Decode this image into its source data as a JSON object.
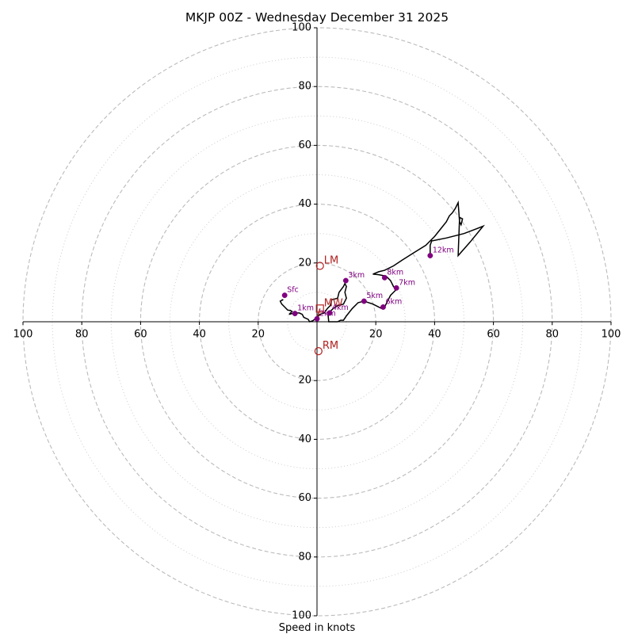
{
  "colors": {
    "trace": "#000000",
    "height_marker": "#800080",
    "storm_motion": "#b22222",
    "ring_major": "#bbbbbb",
    "ring_minor": "#cccccc",
    "axis": "#000000"
  },
  "chart_data": {
    "type": "hodograph",
    "title": "MKJP 00Z - Wednesday December 31 2025",
    "xlabel": "Speed in knots",
    "units": "kt",
    "range": 100,
    "major_rings": [
      20,
      40,
      60,
      80,
      100
    ],
    "minor_rings": [
      10,
      30,
      50,
      70,
      90
    ],
    "tick_labels": {
      "x_left": [
        "100",
        "80",
        "60",
        "40",
        "20"
      ],
      "x_right": [
        "20",
        "40",
        "60",
        "80",
        "100"
      ],
      "y_up": [
        "20",
        "40",
        "60",
        "80",
        "100"
      ],
      "y_down": [
        "20",
        "40",
        "60",
        "80",
        "100"
      ]
    },
    "tick_values": [
      20,
      40,
      60,
      80,
      100
    ],
    "trace_uv": [
      [
        -12,
        7.5
      ],
      [
        -11.5,
        7.5
      ],
      [
        -12.5,
        7
      ],
      [
        -12,
        6
      ],
      [
        -11,
        5
      ],
      [
        -10,
        4
      ],
      [
        -9,
        3.8
      ],
      [
        -8.5,
        3.5
      ],
      [
        -9,
        3
      ],
      [
        -9.5,
        2.5
      ],
      [
        -8.5,
        2.8
      ],
      [
        -7.5,
        3
      ],
      [
        -6,
        3
      ],
      [
        -5,
        2.5
      ],
      [
        -4.5,
        1.5
      ],
      [
        -3,
        0.8
      ],
      [
        -2.5,
        0
      ],
      [
        -1.5,
        0.3
      ],
      [
        0,
        1.4
      ],
      [
        1,
        2.5
      ],
      [
        2.5,
        3
      ],
      [
        3.5,
        4.5
      ],
      [
        4.5,
        5.5
      ],
      [
        5,
        7.5
      ],
      [
        7,
        8
      ],
      [
        7.5,
        10
      ],
      [
        9,
        12
      ],
      [
        9.5,
        13
      ],
      [
        10,
        12
      ],
      [
        9.5,
        10
      ],
      [
        10,
        8
      ],
      [
        9,
        6
      ],
      [
        7,
        5.5
      ],
      [
        5.5,
        4.5
      ],
      [
        4,
        3
      ],
      [
        3.8,
        2
      ],
      [
        4,
        0
      ],
      [
        5,
        0
      ],
      [
        6,
        0
      ],
      [
        7,
        0
      ],
      [
        8,
        0.5
      ],
      [
        9,
        0.5
      ],
      [
        10,
        2
      ],
      [
        12,
        4.5
      ],
      [
        14,
        6.5
      ],
      [
        16,
        7
      ],
      [
        19,
        6
      ],
      [
        21,
        5
      ],
      [
        22,
        4.5
      ],
      [
        23,
        5
      ],
      [
        24,
        7
      ],
      [
        25,
        9
      ],
      [
        26,
        10
      ],
      [
        27,
        11
      ],
      [
        26,
        12
      ],
      [
        25,
        14
      ],
      [
        23.5,
        15.5
      ],
      [
        21,
        16
      ],
      [
        19,
        16.2
      ],
      [
        21,
        17
      ],
      [
        23,
        17.5
      ],
      [
        26,
        19
      ],
      [
        29,
        21
      ],
      [
        33,
        23.5
      ],
      [
        37,
        26
      ],
      [
        40,
        29
      ],
      [
        42,
        31.5
      ],
      [
        44,
        34
      ],
      [
        45,
        36
      ],
      [
        46,
        37
      ],
      [
        47,
        38.5
      ],
      [
        48,
        40.5
      ],
      [
        48.5,
        34
      ],
      [
        49,
        33
      ],
      [
        49.5,
        35
      ],
      [
        48.5,
        35.5
      ],
      [
        48,
        22.5
      ],
      [
        52,
        27
      ],
      [
        56.5,
        32.5
      ],
      [
        54,
        31.5
      ],
      [
        50,
        30
      ],
      [
        44,
        28.5
      ],
      [
        39,
        27.5
      ],
      [
        38.5,
        26
      ],
      [
        38.5,
        22.5
      ]
    ],
    "height_markers": [
      {
        "label": "Sfc",
        "u": -11,
        "v": 9
      },
      {
        "label": "1km",
        "u": -7.5,
        "v": 2.8
      },
      {
        "label": "2km",
        "u": 0,
        "v": 1
      },
      {
        "label": "3km",
        "u": 9.8,
        "v": 14
      },
      {
        "label": "4km",
        "u": 4.3,
        "v": 3
      },
      {
        "label": "5km",
        "u": 16,
        "v": 7
      },
      {
        "label": "6km",
        "u": 22.5,
        "v": 5
      },
      {
        "label": "7km",
        "u": 27,
        "v": 11.5
      },
      {
        "label": "8km",
        "u": 23,
        "v": 15
      },
      {
        "label": "12km",
        "u": 38.5,
        "v": 22.5
      }
    ],
    "storm_motions": [
      {
        "label": "LM",
        "u": 1,
        "v": 19
      },
      {
        "label": "MW",
        "u": 1,
        "v": 4.5
      },
      {
        "label": "RM",
        "u": 0.5,
        "v": -10
      }
    ],
    "storm_motion_vector": {
      "from": [
        0,
        1
      ],
      "to": [
        1,
        4.5
      ]
    }
  }
}
